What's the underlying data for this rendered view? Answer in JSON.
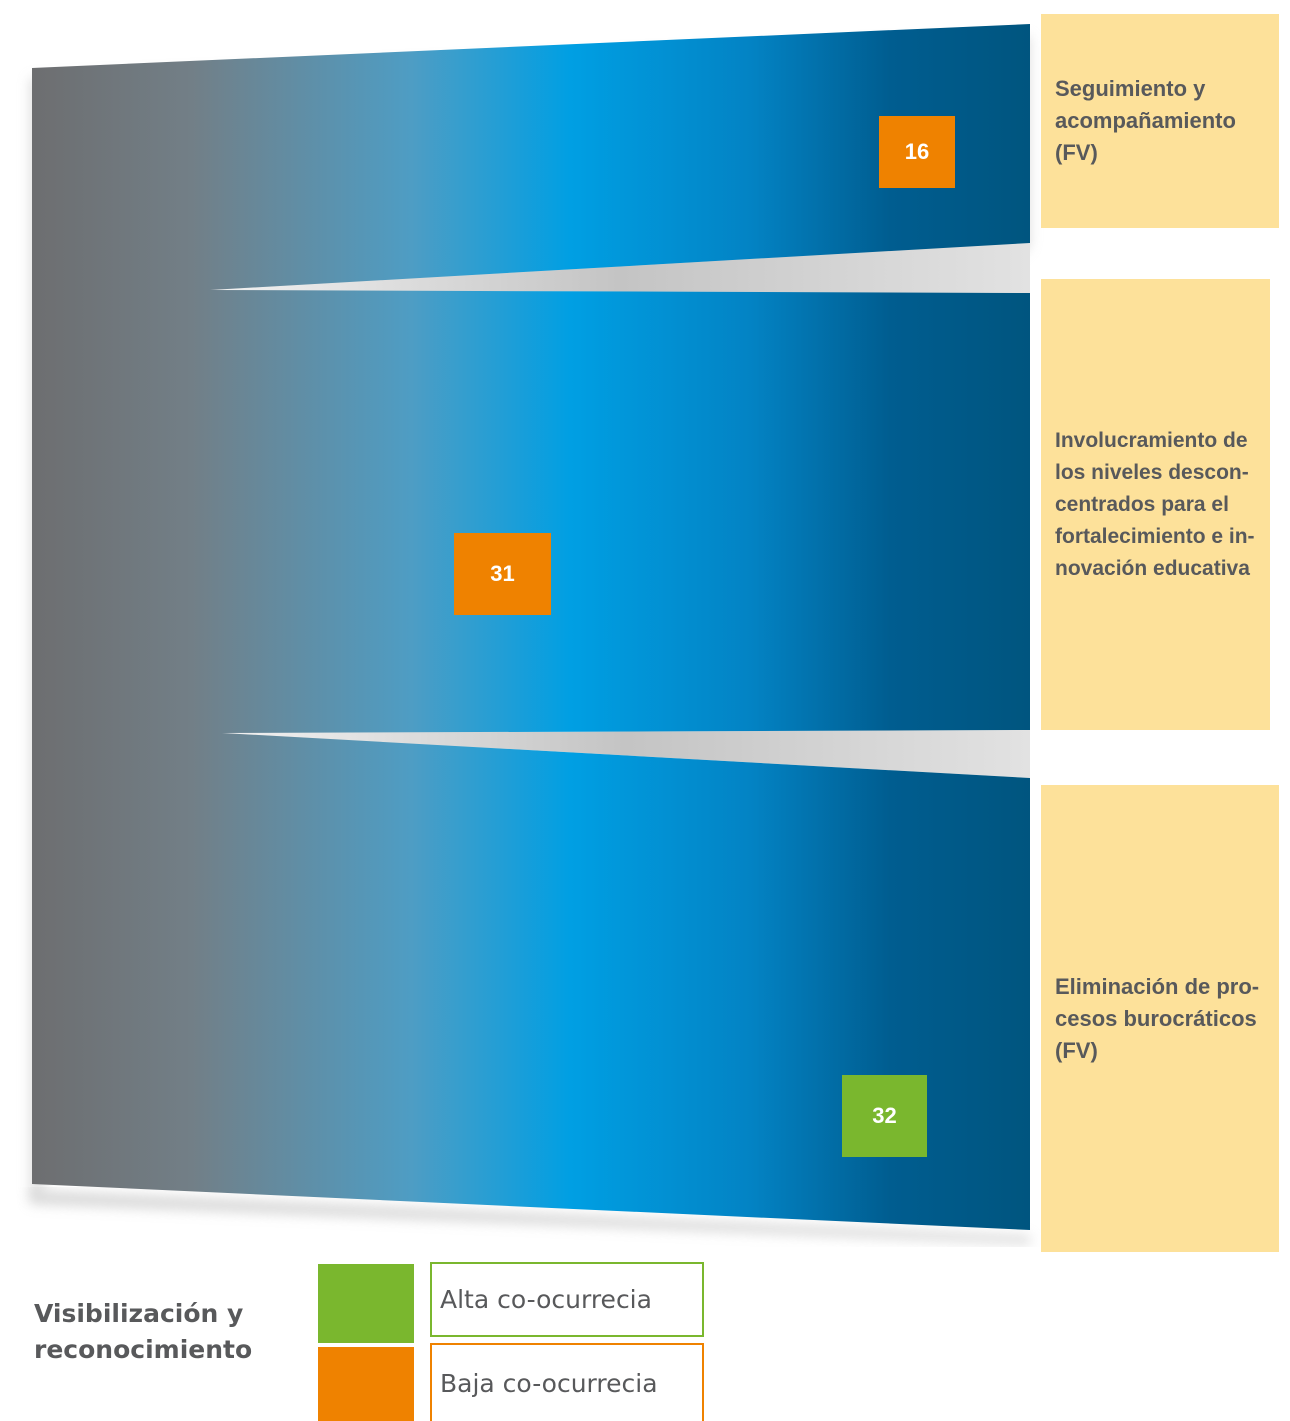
{
  "source": {
    "label": "Visibilización y\nreconocimiento"
  },
  "targets": [
    {
      "label": "Seguimiento y\nacompañamiento\n(FV)",
      "value": "16",
      "level": "baja"
    },
    {
      "label": "Involucramiento de\nlos niveles descon-\ncentrados para el\nfortalecimiento e in-\nnovación educativa",
      "value": "31",
      "level": "baja"
    },
    {
      "label": "Eliminación de pro-\ncesos burocráticos\n(FV)",
      "value": "32",
      "level": "alta"
    }
  ],
  "legend": [
    {
      "label": "Alta co-ocurrecia",
      "color": "#7ab72e"
    },
    {
      "label": "Baja co-ocurrecia",
      "color": "#ef8200"
    }
  ],
  "colors": {
    "gray": "#6d6e70",
    "blue": "#009fe3",
    "navy": "#005686",
    "label_bg": "#fde19a"
  }
}
